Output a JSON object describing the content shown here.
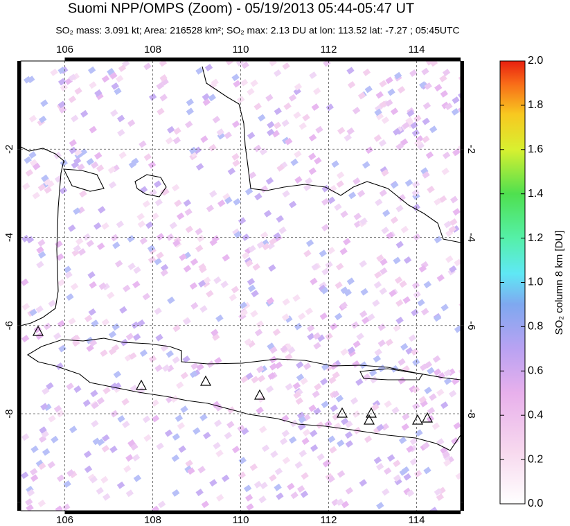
{
  "title": "Suomi NPP/OMPS (Zoom) - 05/19/2013 05:44-05:47 UT",
  "subtitle": "SO₂ mass: 3.091 kt; Area: 216528 km²; SO₂ max: 2.13 DU at lon: 113.52 lat: -7.27 ; 05:45UTC",
  "map": {
    "xlim": [
      105,
      115
    ],
    "ylim": [
      -10.2,
      0
    ],
    "xticks": [
      106,
      108,
      110,
      112,
      114
    ],
    "yticks": [
      -2,
      -4,
      -6,
      -8
    ]
  },
  "colorbar": {
    "label": "SO₂ column 8 km [DU]",
    "lim": [
      0,
      2
    ],
    "ticks": [
      {
        "value": 0,
        "label": "0.0"
      },
      0.2,
      0.4,
      0.6,
      0.8,
      {
        "value": 1,
        "label": "1.0"
      },
      1.2,
      1.4,
      1.6,
      1.8,
      {
        "value": 2,
        "label": "2.0"
      }
    ]
  }
}
